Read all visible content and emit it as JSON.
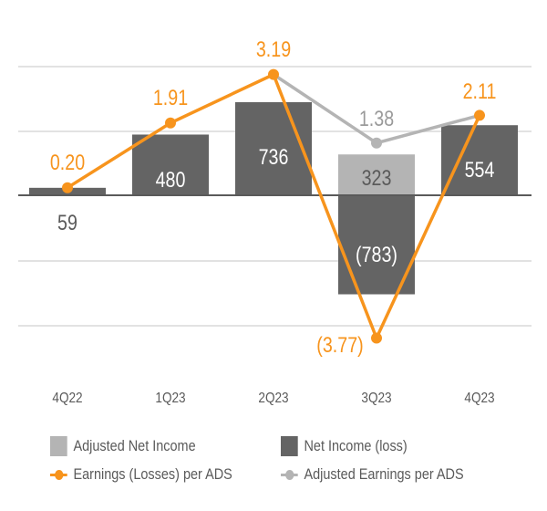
{
  "chart_data": {
    "type": "bar",
    "categories": [
      "4Q22",
      "1Q23",
      "2Q23",
      "3Q23",
      "4Q23"
    ],
    "bar_series": [
      {
        "name": "Net Income (loss)",
        "values": [
          59,
          480,
          736,
          -783,
          554
        ],
        "labels": [
          "59",
          "480",
          "736",
          "(783)",
          "554"
        ],
        "color": "#646464"
      },
      {
        "name": "Adjusted Net Income",
        "values": [
          null,
          null,
          null,
          323,
          null
        ],
        "labels": [
          null,
          null,
          null,
          "323",
          null
        ],
        "color": "#b4b4b4"
      }
    ],
    "line_series": [
      {
        "name": "Earnings (Losses) per ADS",
        "values": [
          0.2,
          1.91,
          3.19,
          -3.77,
          2.11
        ],
        "labels": [
          "0.20",
          "1.91",
          "3.19",
          "(3.77)",
          "2.11"
        ],
        "color": "#f7941d"
      },
      {
        "name": "Adjusted Earnings per ADS",
        "values": [
          null,
          null,
          3.19,
          1.38,
          2.11
        ],
        "labels": [
          null,
          null,
          null,
          "1.38",
          null
        ],
        "color": "#b4b4b4"
      }
    ],
    "grid": true,
    "legend_position": "bottom"
  }
}
